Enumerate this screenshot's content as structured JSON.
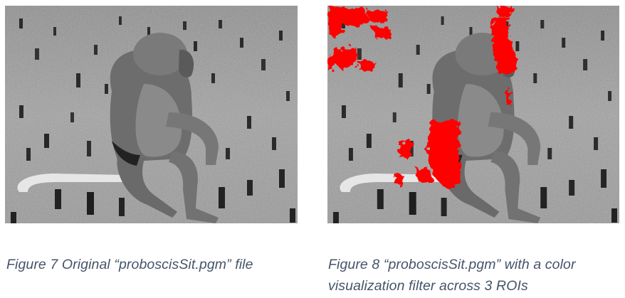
{
  "figures": [
    {
      "id": "figure-7",
      "caption": "Figure 7 Original “proboscisSit.pgm” file"
    },
    {
      "id": "figure-8",
      "caption_line1": "Figure 8 “proboscisSit.pgm” with a color",
      "caption_line2": "visualization filter across 3 ROIs"
    }
  ],
  "colors": {
    "caption": "#44546a",
    "highlight": "#ff0000"
  }
}
